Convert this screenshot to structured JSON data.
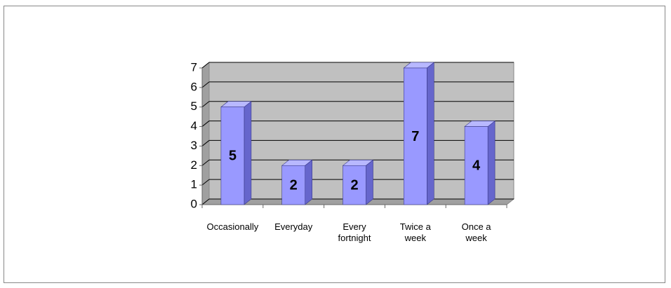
{
  "chart_data": {
    "type": "bar3d",
    "categories": [
      "Occasionally",
      "Everyday",
      "Every fortnight",
      "Twice a week",
      "Once a week"
    ],
    "values": [
      5,
      2,
      2,
      7,
      4
    ],
    "color": "#9999ff",
    "ylim": [
      0,
      7
    ],
    "yticks": [
      0,
      1,
      2,
      3,
      4,
      5,
      6,
      7
    ],
    "grid": true
  }
}
